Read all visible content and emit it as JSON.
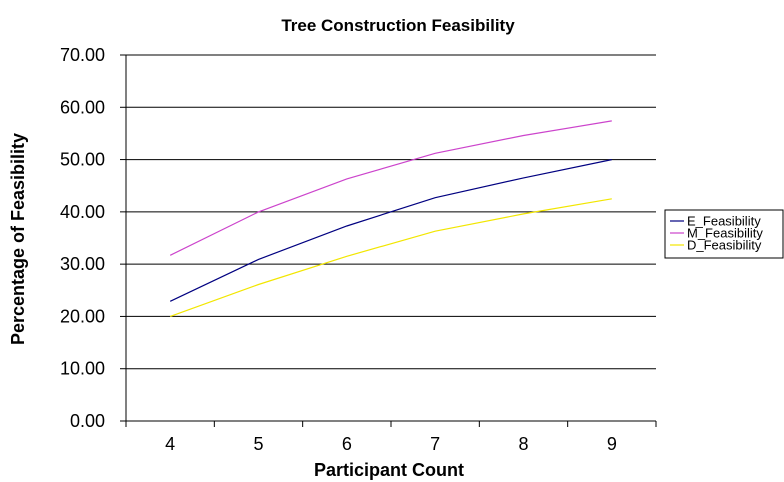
{
  "chart_data": {
    "type": "line",
    "title": "Tree Construction Feasibility",
    "xlabel": "Participant Count",
    "ylabel": "Percentage of Feasibility",
    "categories": [
      "4",
      "5",
      "6",
      "7",
      "8",
      "9"
    ],
    "ylim": [
      0,
      70
    ],
    "yticks": [
      "0.00",
      "10.00",
      "20.00",
      "30.00",
      "40.00",
      "50.00",
      "60.00",
      "70.00"
    ],
    "grid": true,
    "legend_position": "right",
    "series": [
      {
        "name": "E_Feasibility",
        "color": "#000080",
        "values": [
          22.9,
          30.9,
          37.3,
          42.7,
          46.5,
          50.0
        ]
      },
      {
        "name": "M_Feasibility",
        "color": "#cc44cc",
        "values": [
          31.7,
          40.0,
          46.3,
          51.2,
          54.6,
          57.4
        ]
      },
      {
        "name": "D_Feasibility",
        "color": "#f2e600",
        "values": [
          20.0,
          26.1,
          31.5,
          36.3,
          39.6,
          42.5
        ]
      }
    ]
  }
}
